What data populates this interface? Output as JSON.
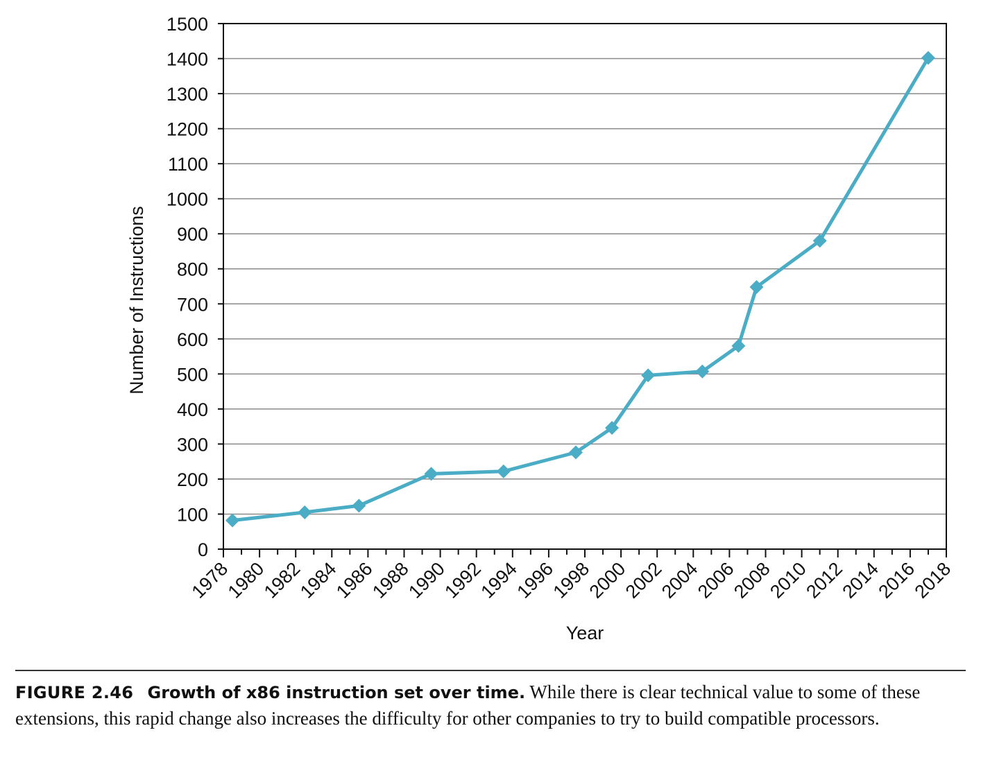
{
  "chart_data": {
    "type": "line",
    "xlabel": "Year",
    "ylabel": "Number of Instructions",
    "xlim": [
      1978,
      2018
    ],
    "ylim": [
      0,
      1500
    ],
    "x_ticks": [
      1978,
      1980,
      1982,
      1984,
      1986,
      1988,
      1990,
      1992,
      1994,
      1996,
      1998,
      2000,
      2002,
      2004,
      2006,
      2008,
      2010,
      2012,
      2014,
      2016,
      2018
    ],
    "y_ticks": [
      0,
      100,
      200,
      300,
      400,
      500,
      600,
      700,
      800,
      900,
      1000,
      1100,
      1200,
      1300,
      1400,
      1500
    ],
    "grid": "horizontal",
    "series": [
      {
        "color": "#4bacc6",
        "marker": "diamond",
        "points": [
          {
            "x": 1978.5,
            "y": 82
          },
          {
            "x": 1982.5,
            "y": 105
          },
          {
            "x": 1985.5,
            "y": 124
          },
          {
            "x": 1989.5,
            "y": 215
          },
          {
            "x": 1993.5,
            "y": 222
          },
          {
            "x": 1997.5,
            "y": 276
          },
          {
            "x": 1999.5,
            "y": 346
          },
          {
            "x": 2001.5,
            "y": 496
          },
          {
            "x": 2004.5,
            "y": 507
          },
          {
            "x": 2006.5,
            "y": 580
          },
          {
            "x": 2007.5,
            "y": 748
          },
          {
            "x": 2011.0,
            "y": 880
          },
          {
            "x": 2017.0,
            "y": 1402
          }
        ]
      }
    ]
  },
  "caption": {
    "label": "FIGURE 2.46",
    "title": "Growth of x86 instruction set over time.",
    "text": "While there is clear technical value to some of these extensions, this rapid change also increases the difficulty for other companies to try to build compatible processors."
  }
}
